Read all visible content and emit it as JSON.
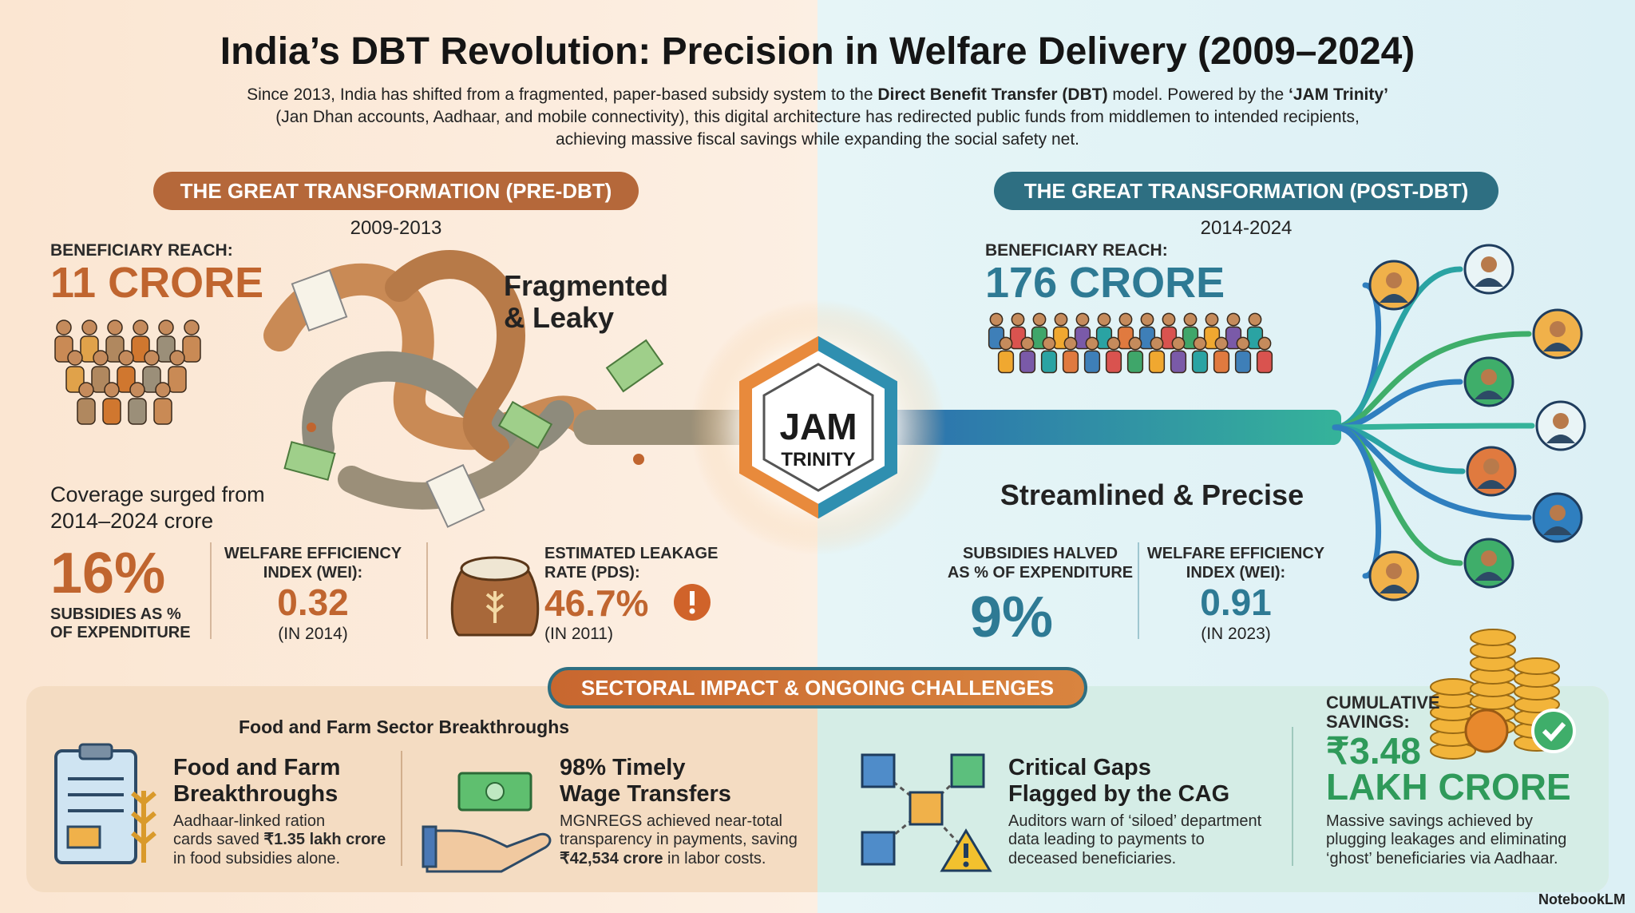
{
  "header": {
    "title": "India’s DBT Revolution: Precision in Welfare Delivery (2009–2024)",
    "intro": [
      [
        "Since 2013, India has shifted from a fragmented, paper-based subsidy system to the ",
        "Direct Benefit Transfer (DBT)",
        " model. Powered by the ",
        "‘JAM Trinity’"
      ],
      [
        "(Jan Dhan accounts, Aadhaar, and mobile connectivity), this digital architecture has redirected public funds from middlemen to intended recipients,"
      ],
      [
        "achieving massive fiscal savings while expanding the social safety net."
      ]
    ]
  },
  "pre": {
    "banner": "THE GREAT TRANSFORMATION (PRE-DBT)",
    "period": "2009-2013",
    "reach_label": "BENEFICIARY REACH:",
    "reach": "11 CRORE",
    "tagline": [
      "Fragmented",
      "& Leaky"
    ],
    "note": [
      "Coverage surged from",
      "2014–2024 crore"
    ],
    "subsidy": {
      "value": "16%",
      "label": [
        "SUBSIDIES AS %",
        "OF EXPENDITURE"
      ]
    },
    "wei": {
      "label": [
        "WELFARE EFFICIENCY",
        "INDEX (WEI):"
      ],
      "value": "0.32",
      "year": "(IN 2014)"
    },
    "leakage": {
      "label": [
        "ESTIMATED LEAKAGE",
        "RATE (PDS):"
      ],
      "value": "46.7%",
      "year": "(IN 2011)"
    }
  },
  "hub": [
    "JAM",
    "TRINITY"
  ],
  "post": {
    "banner": "THE GREAT TRANSFORMATION (POST-DBT)",
    "period": "2014-2024",
    "reach_label": "BENEFICIARY REACH:",
    "reach": "176 CRORE",
    "tagline": "Streamlined & Precise",
    "subsidy": {
      "label": [
        "SUBSIDIES HALVED",
        "AS % OF EXPENDITURE"
      ],
      "value": "9%"
    },
    "wei": {
      "label": [
        "WELFARE EFFICIENCY",
        "INDEX (WEI):"
      ],
      "value": "0.91",
      "year": "(IN 2023)"
    }
  },
  "sectoral": {
    "banner": "SECTORAL IMPACT & ONGOING CHALLENGES",
    "subheading": "Food and Farm Sector Breakthroughs",
    "cards": [
      {
        "title": [
          "Food and Farm",
          "Breakthroughs"
        ],
        "body": [
          [
            "Aadhaar-linked ration"
          ],
          [
            "cards saved ",
            "₹1.35 lakh crore"
          ],
          [
            "in food subsidies alone."
          ]
        ]
      },
      {
        "title": [
          "98% Timely",
          "Wage Transfers"
        ],
        "body": [
          [
            "MGNREGS achieved near-total"
          ],
          [
            "transparency in payments, saving"
          ],
          [
            "₹42,534 crore",
            " in labor costs."
          ]
        ]
      },
      {
        "title": [
          "Critical Gaps",
          "Flagged by the CAG"
        ],
        "body": [
          [
            "Auditors warn of ‘siloed’ department"
          ],
          [
            "data leading to payments to"
          ],
          [
            "deceased beneficiaries."
          ]
        ]
      }
    ]
  },
  "savings": {
    "label": [
      "CUMULATIVE",
      "SAVINGS:"
    ],
    "value": [
      "₹3.48",
      "LAKH CRORE"
    ],
    "body": [
      "Massive savings achieved by",
      "plugging leakages and eliminating",
      "‘ghost’ beneficiaries via Aadhaar."
    ]
  },
  "footer": "NotebookLM"
}
